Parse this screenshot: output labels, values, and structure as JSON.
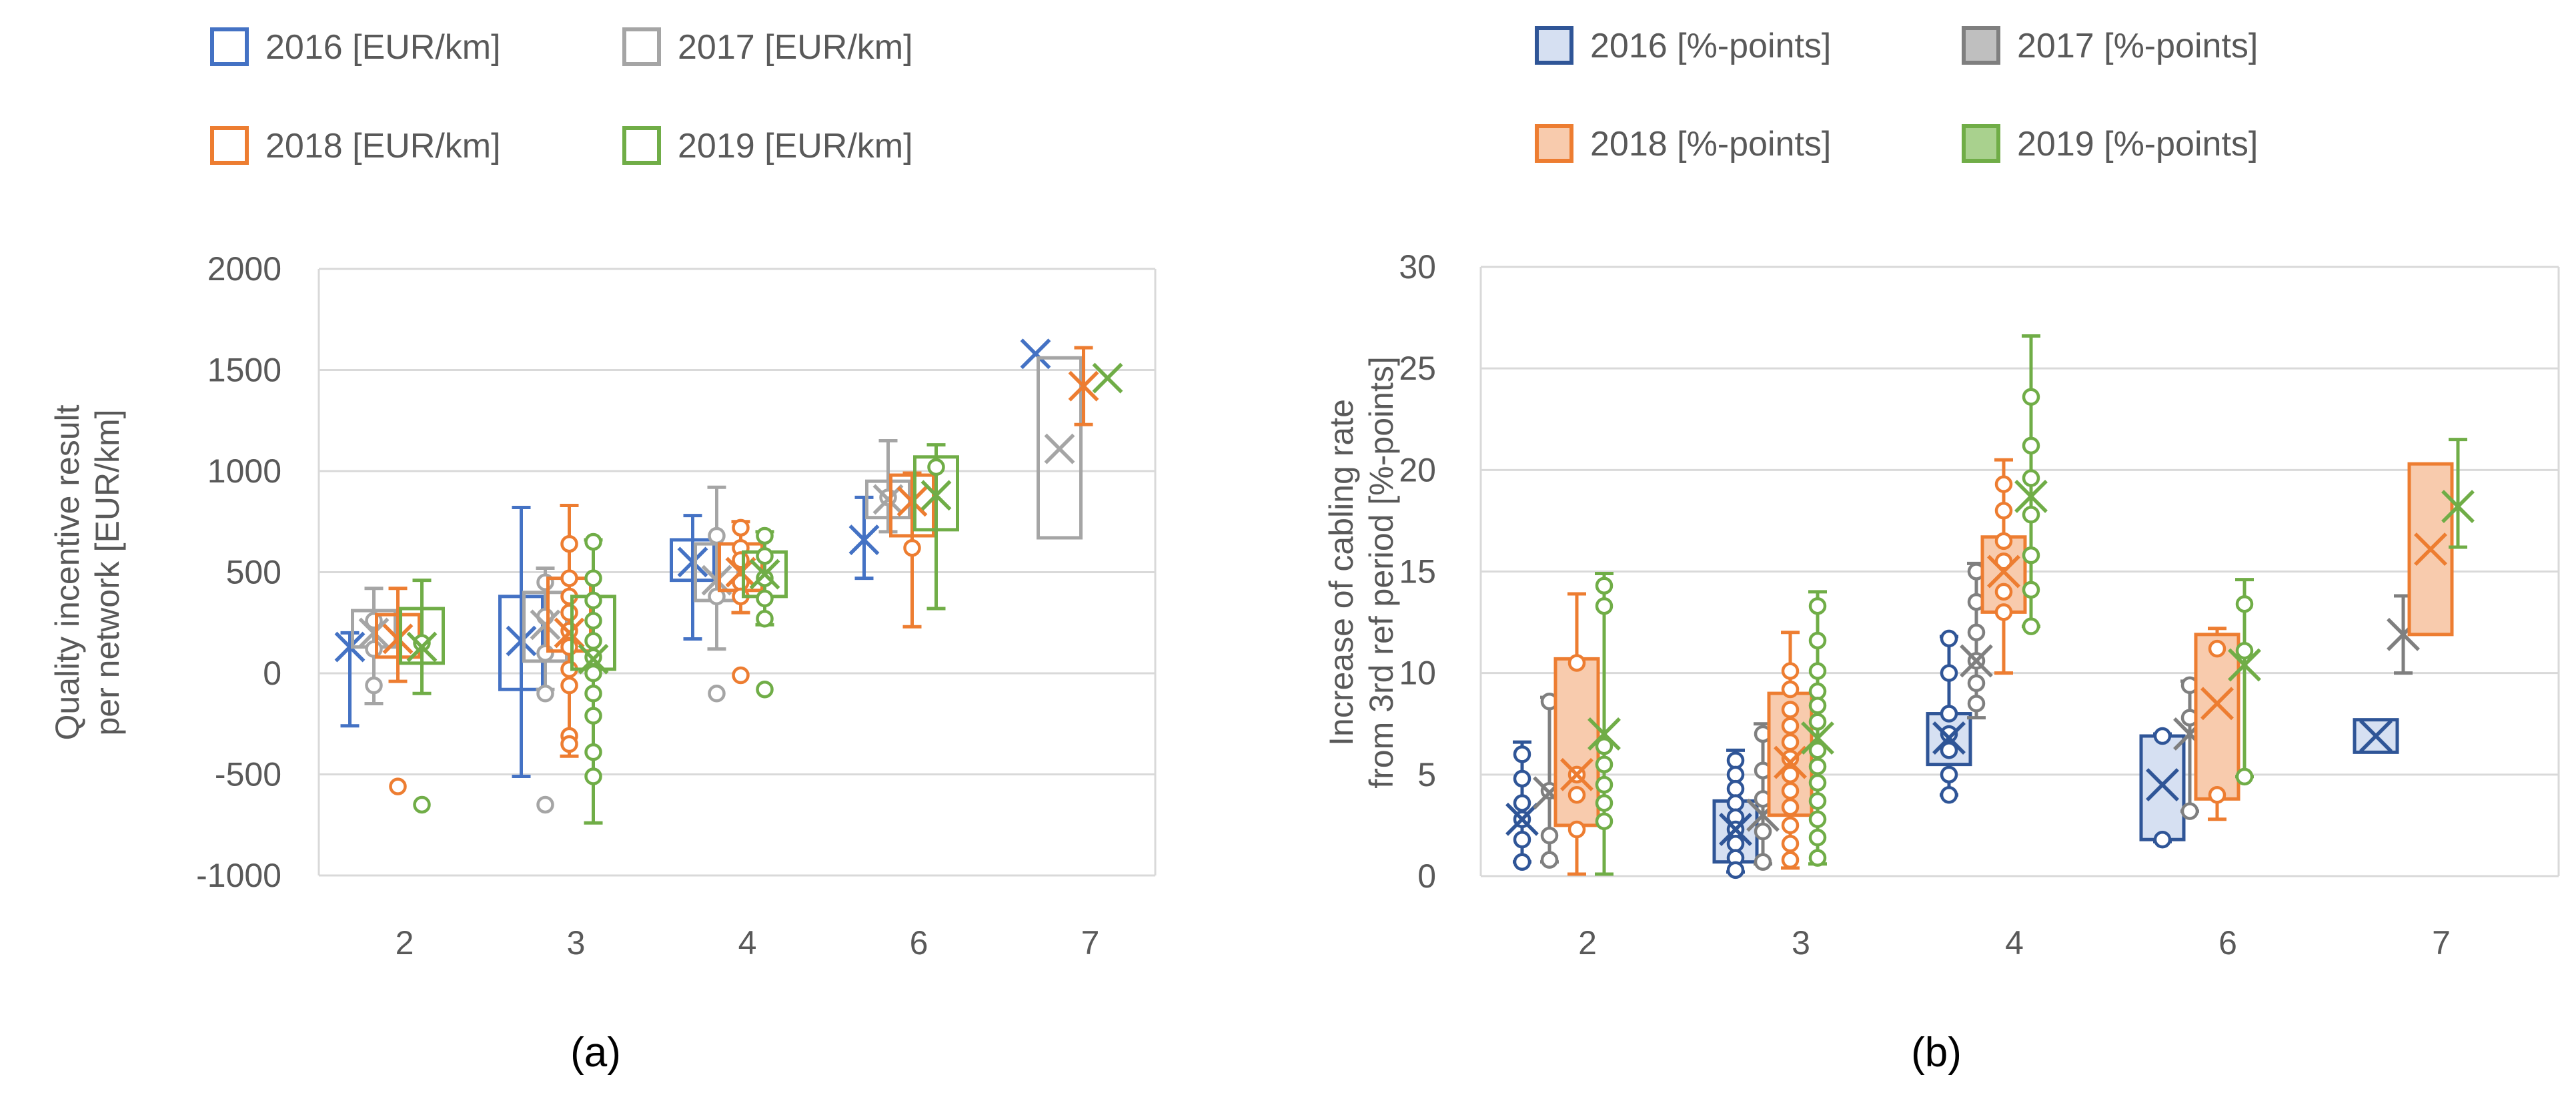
{
  "panels": [
    {
      "caption": "(a)"
    },
    {
      "caption": "(b)"
    }
  ],
  "chart_data": [
    {
      "type": "box",
      "ylabel": "Quality incentive result per network [EUR/km]",
      "ylim": [
        -1000,
        2000
      ],
      "yticks": [
        2000,
        1500,
        1000,
        500,
        0,
        -500,
        -1000
      ],
      "categories": [
        "2",
        "3",
        "4",
        "6",
        "7"
      ],
      "grid": true,
      "legend_position": "top",
      "series": [
        {
          "name": "2016 [EUR/km]",
          "color": "#4472C4",
          "filled": false,
          "boxes": [
            {
              "cat": "2",
              "mean": 130,
              "min": -260,
              "max": 200,
              "points": []
            },
            {
              "cat": "3",
              "mean": 160,
              "q1": -80,
              "q3": 380,
              "min": -510,
              "max": 820,
              "points": []
            },
            {
              "cat": "4",
              "mean": 550,
              "q1": 460,
              "q3": 660,
              "min": 170,
              "max": 780,
              "points": []
            },
            {
              "cat": "6",
              "mean": 660,
              "min": 470,
              "max": 870,
              "points": []
            },
            {
              "cat": "7",
              "mean": 1580,
              "points": []
            }
          ]
        },
        {
          "name": "2017 [EUR/km]",
          "color": "#A5A5A5",
          "filled": false,
          "boxes": [
            {
              "cat": "2",
              "mean": 200,
              "q1": 130,
              "q3": 310,
              "min": -150,
              "max": 420,
              "points": [
                120,
                260,
                -60
              ]
            },
            {
              "cat": "3",
              "mean": 240,
              "q1": 60,
              "q3": 400,
              "min": -80,
              "max": 520,
              "points": [
                450,
                280,
                100,
                -100,
                -650
              ]
            },
            {
              "cat": "4",
              "mean": 460,
              "q1": 360,
              "q3": 640,
              "min": 120,
              "max": 920,
              "points": [
                680,
                380,
                -100
              ]
            },
            {
              "cat": "6",
              "mean": 860,
              "q1": 770,
              "q3": 950,
              "min": 700,
              "max": 1150,
              "points": [
                870
              ]
            },
            {
              "cat": "7",
              "mean": 1110,
              "q1": 670,
              "q3": 1560,
              "points": []
            }
          ]
        },
        {
          "name": "2018 [EUR/km]",
          "color": "#ED7D31",
          "filled": false,
          "boxes": [
            {
              "cat": "2",
              "mean": 170,
              "q1": 80,
              "q3": 290,
              "min": -40,
              "max": 420,
              "points": [
                -560
              ]
            },
            {
              "cat": "3",
              "mean": 200,
              "q1": 110,
              "q3": 470,
              "min": -410,
              "max": 830,
              "points": [
                640,
                470,
                380,
                300,
                210,
                130,
                20,
                -60,
                -310,
                -350
              ]
            },
            {
              "cat": "4",
              "mean": 500,
              "q1": 410,
              "q3": 640,
              "min": 300,
              "max": 750,
              "points": [
                720,
                620,
                560,
                450,
                380,
                -10
              ]
            },
            {
              "cat": "6",
              "mean": 850,
              "q1": 680,
              "q3": 980,
              "min": 230,
              "max": 990,
              "points": [
                620
              ]
            },
            {
              "cat": "7",
              "mean": 1420,
              "min": 1230,
              "max": 1610,
              "points": []
            }
          ]
        },
        {
          "name": "2019 [EUR/km]",
          "color": "#70AD47",
          "filled": false,
          "boxes": [
            {
              "cat": "2",
              "mean": 130,
              "q1": 50,
              "q3": 320,
              "min": -100,
              "max": 460,
              "points": [
                150,
                -650
              ]
            },
            {
              "cat": "3",
              "mean": 70,
              "q1": 20,
              "q3": 380,
              "min": -740,
              "max": 660,
              "points": [
                650,
                470,
                360,
                260,
                160,
                80,
                0,
                -100,
                -210,
                -390,
                -510
              ]
            },
            {
              "cat": "4",
              "mean": 490,
              "q1": 380,
              "q3": 600,
              "min": 240,
              "max": 700,
              "points": [
                680,
                580,
                470,
                370,
                270,
                -80
              ]
            },
            {
              "cat": "6",
              "mean": 880,
              "q1": 710,
              "q3": 1070,
              "min": 320,
              "max": 1130,
              "points": [
                1020
              ]
            },
            {
              "cat": "7",
              "mean": 1460,
              "points": []
            }
          ]
        }
      ]
    },
    {
      "type": "box",
      "ylabel": "Increase of cabling rate from 3rd ref period [%-points]",
      "ylim": [
        0,
        30
      ],
      "yticks": [
        30,
        25,
        20,
        15,
        10,
        5,
        0
      ],
      "categories": [
        "2",
        "3",
        "4",
        "6",
        "7"
      ],
      "grid": true,
      "legend_position": "top",
      "series": [
        {
          "name": "2016 [%-points]",
          "color": "#2F5597",
          "fill": "#D6E0F2",
          "filled": true,
          "boxes": [
            {
              "cat": "2",
              "mean": 2.8,
              "min": 0.7,
              "max": 6.6,
              "points": [
                6.0,
                4.8,
                3.6,
                2.8,
                1.8,
                0.7
              ]
            },
            {
              "cat": "3",
              "mean": 2.3,
              "q1": 0.7,
              "q3": 3.7,
              "min": 0.2,
              "max": 6.2,
              "points": [
                5.7,
                5.0,
                4.3,
                3.6,
                2.9,
                2.3,
                1.6,
                0.9,
                0.3
              ]
            },
            {
              "cat": "4",
              "mean": 6.8,
              "q1": 5.5,
              "q3": 8.0,
              "min": 4.0,
              "max": 11.8,
              "points": [
                11.7,
                10.0,
                8.0,
                7.0,
                6.2,
                5.0,
                4.0
              ]
            },
            {
              "cat": "6",
              "mean": 4.5,
              "q1": 1.8,
              "q3": 6.9,
              "min": 1.7,
              "max": 7.0,
              "points": [
                6.9,
                1.8
              ]
            },
            {
              "cat": "7",
              "mean": 6.9,
              "q1": 6.1,
              "q3": 7.7,
              "points": []
            }
          ]
        },
        {
          "name": "2017 [%-points]",
          "color": "#7F7F7F",
          "fill": "#BFBFBF",
          "filled": true,
          "boxes": [
            {
              "cat": "2",
              "mean": 4.1,
              "min": 0.7,
              "max": 8.8,
              "points": [
                8.6,
                4.2,
                2.0,
                0.8
              ]
            },
            {
              "cat": "3",
              "mean": 3.0,
              "min": 0.6,
              "max": 7.5,
              "points": [
                7.0,
                5.2,
                3.8,
                2.2,
                0.7
              ]
            },
            {
              "cat": "4",
              "mean": 10.6,
              "min": 7.8,
              "max": 15.4,
              "points": [
                15.0,
                13.5,
                12.0,
                10.6,
                9.5,
                8.5
              ]
            },
            {
              "cat": "6",
              "mean": 7.0,
              "min": 3.2,
              "max": 9.6,
              "points": [
                9.4,
                7.8,
                3.2
              ]
            },
            {
              "cat": "7",
              "mean": 11.9,
              "min": 10.0,
              "max": 13.8,
              "points": []
            }
          ]
        },
        {
          "name": "2018 [%-points]",
          "color": "#ED7D31",
          "fill": "#F8CBAD",
          "filled": true,
          "boxes": [
            {
              "cat": "2",
              "mean": 5.0,
              "q1": 2.5,
              "q3": 10.7,
              "min": 0.1,
              "max": 13.9,
              "points": [
                10.5,
                5.0,
                4.0,
                2.3
              ]
            },
            {
              "cat": "3",
              "mean": 5.6,
              "q1": 3.0,
              "q3": 9.0,
              "min": 0.4,
              "max": 12.0,
              "points": [
                10.1,
                9.2,
                8.2,
                7.4,
                6.6,
                5.8,
                5.0,
                4.2,
                3.4,
                2.5,
                1.6,
                0.8
              ]
            },
            {
              "cat": "4",
              "mean": 15.0,
              "q1": 13.0,
              "q3": 16.7,
              "min": 10.0,
              "max": 20.5,
              "points": [
                19.3,
                18.0,
                16.5,
                15.5,
                14.0,
                13.0
              ]
            },
            {
              "cat": "6",
              "mean": 8.5,
              "q1": 3.8,
              "q3": 11.9,
              "min": 2.8,
              "max": 12.2,
              "points": [
                11.2,
                4.0
              ]
            },
            {
              "cat": "7",
              "mean": 16.1,
              "q1": 11.9,
              "q3": 20.3,
              "points": []
            }
          ]
        },
        {
          "name": "2019 [%-points]",
          "color": "#70AD47",
          "fill": "#A9D18E",
          "filled": true,
          "boxes": [
            {
              "cat": "2",
              "mean": 7.0,
              "min": 0.1,
              "max": 14.9,
              "points": [
                14.3,
                13.3,
                6.4,
                5.5,
                4.5,
                3.6,
                2.7
              ]
            },
            {
              "cat": "3",
              "mean": 6.8,
              "min": 0.6,
              "max": 14.0,
              "points": [
                13.3,
                11.6,
                10.1,
                9.1,
                8.4,
                7.6,
                6.2,
                5.4,
                4.6,
                3.7,
                2.8,
                1.9,
                0.9
              ]
            },
            {
              "cat": "4",
              "mean": 18.7,
              "min": 12.3,
              "max": 26.6,
              "points": [
                23.6,
                21.2,
                19.6,
                17.8,
                15.8,
                14.1,
                12.3
              ]
            },
            {
              "cat": "6",
              "mean": 10.4,
              "min": 4.9,
              "max": 14.6,
              "points": [
                13.4,
                11.1,
                4.9
              ]
            },
            {
              "cat": "7",
              "mean": 18.2,
              "min": 16.2,
              "max": 21.5,
              "points": []
            }
          ]
        }
      ]
    }
  ]
}
